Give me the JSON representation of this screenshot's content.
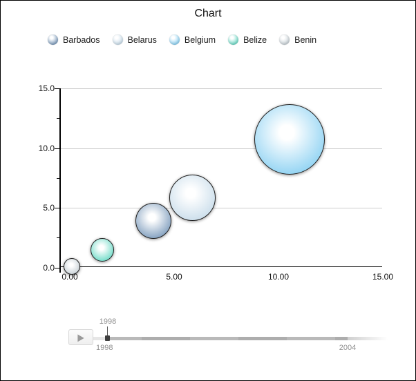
{
  "title": "Chart",
  "legend": {
    "items": [
      {
        "label": "Barbados",
        "color": "#6f91b5"
      },
      {
        "label": "Belarus",
        "color": "#c3d9e8"
      },
      {
        "label": "Belgium",
        "color": "#7fccf1"
      },
      {
        "label": "Belize",
        "color": "#5cd6c0"
      },
      {
        "label": "Benin",
        "color": "#c2ccd2"
      }
    ]
  },
  "chart_data": {
    "type": "scatter",
    "subtype": "bubble",
    "title": "Chart",
    "series": [
      {
        "name": "Barbados",
        "x": 4.0,
        "y": 3.9,
        "radius_px": 26,
        "color": "#6f91b5"
      },
      {
        "name": "Belarus",
        "x": 5.87,
        "y": 5.85,
        "radius_px": 33.5,
        "color": "#c3d9e8"
      },
      {
        "name": "Belgium",
        "x": 10.54,
        "y": 10.7,
        "radius_px": 51,
        "color": "#7fccf1"
      },
      {
        "name": "Belize",
        "x": 1.55,
        "y": 1.5,
        "radius_px": 17,
        "color": "#5cd6c0"
      },
      {
        "name": "Benin",
        "x": 0.1,
        "y": 0.1,
        "radius_px": 12,
        "color": "#c2ccd2"
      }
    ],
    "x_axis": {
      "ticks": [
        {
          "label": "0.00",
          "value": 0
        },
        {
          "label": "5.00",
          "value": 5
        },
        {
          "label": "10.00",
          "value": 10
        },
        {
          "label": "15.00",
          "value": 15
        }
      ],
      "range": [
        0,
        15
      ]
    },
    "y_axis": {
      "ticks": [
        {
          "label": "0.0",
          "value": 0
        },
        {
          "label": "5.0",
          "value": 5
        },
        {
          "label": "10.0",
          "value": 10
        },
        {
          "label": "15.0",
          "value": 15
        }
      ],
      "minor_ticks": [
        2.5,
        7.5,
        12.5
      ],
      "range": [
        0,
        15
      ]
    },
    "grid": true,
    "gridline_values": [
      5,
      10,
      15
    ],
    "legend_position": "top"
  },
  "timeline": {
    "tooltip": "1998",
    "start_label": "1998",
    "end_label": "2004",
    "icons": {
      "play": "▶"
    }
  }
}
